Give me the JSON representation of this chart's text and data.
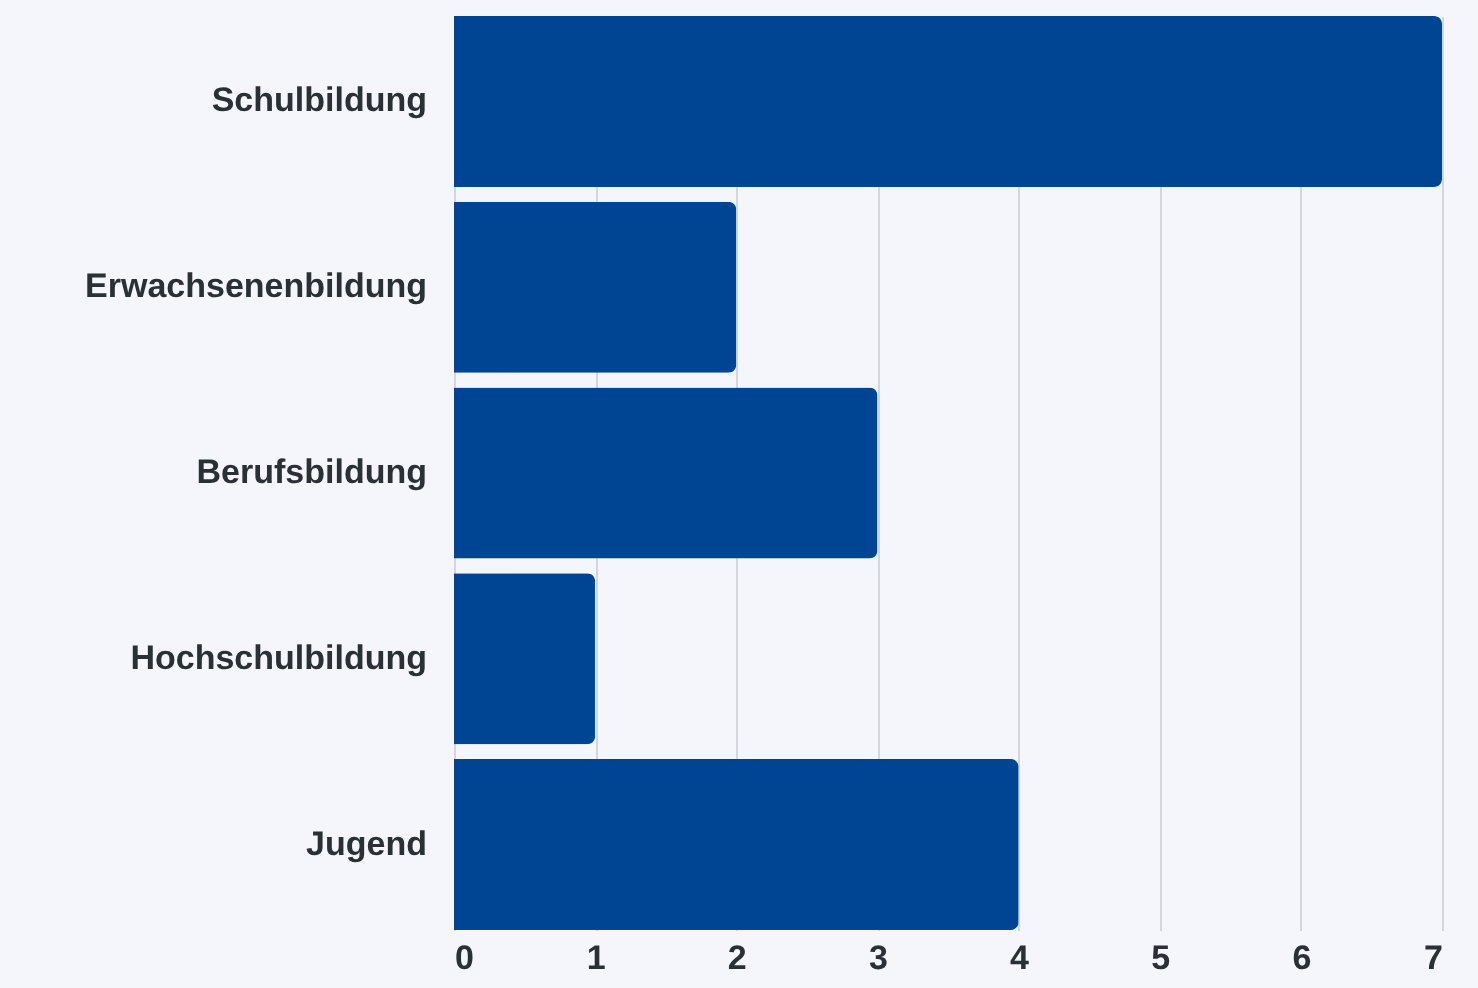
{
  "chart_data": {
    "type": "bar",
    "orientation": "horizontal",
    "categories": [
      "Schulbildung",
      "Erwachsenenbildung",
      "Berufsbildung",
      "Hochschulbildung",
      "Jugend"
    ],
    "values": [
      7,
      2,
      3,
      1,
      4
    ],
    "color": "#004494",
    "xlim": [
      0,
      7
    ],
    "xticks": [
      0,
      1,
      2,
      3,
      4,
      5,
      6,
      7
    ],
    "grid": "x"
  }
}
